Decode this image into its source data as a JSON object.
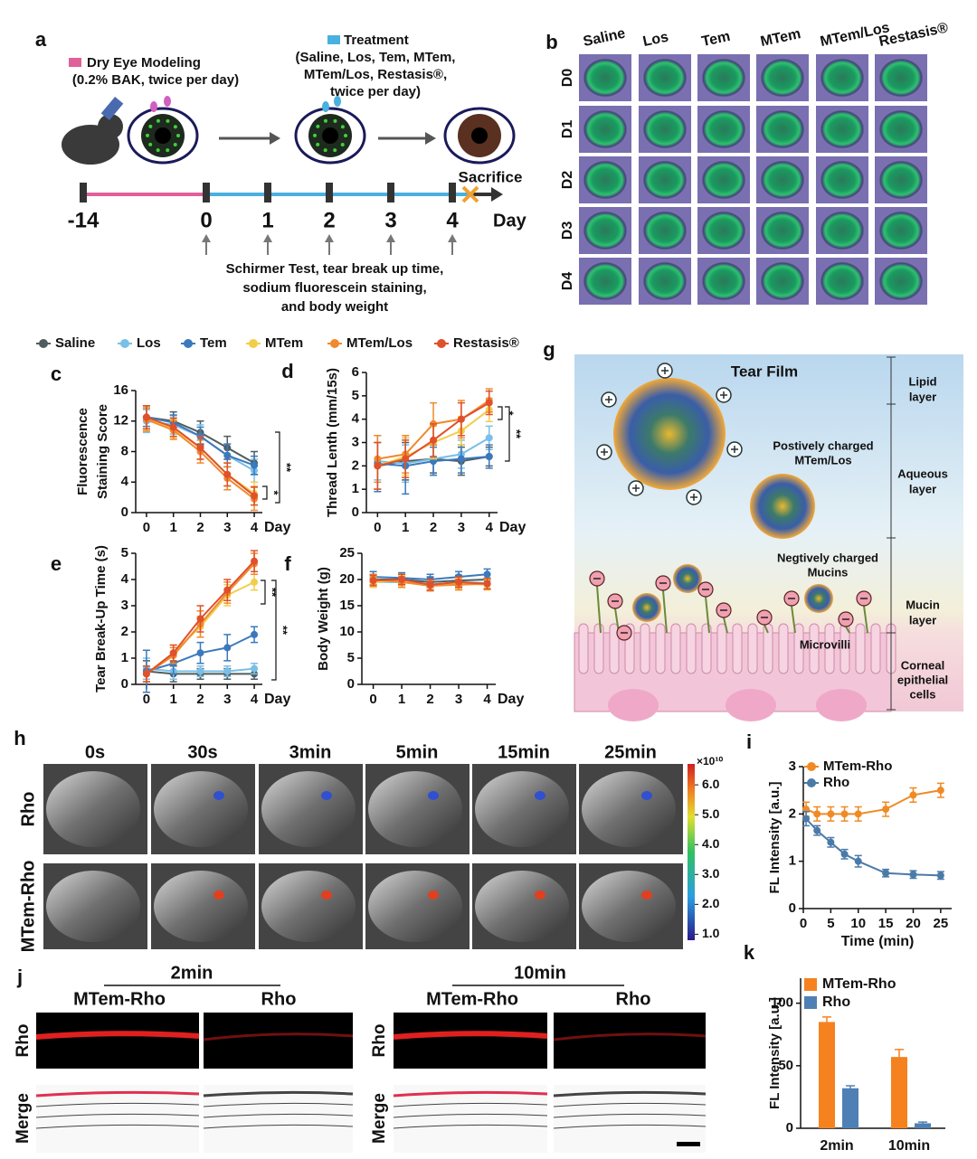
{
  "panel_labels": [
    "a",
    "b",
    "c",
    "d",
    "e",
    "f",
    "g",
    "h",
    "i",
    "j",
    "k"
  ],
  "schematic": {
    "modeling": "Dry Eye Modeling",
    "modeling_note": "(0.2% BAK, twice per day)",
    "treatment": "Treatment",
    "treatment_note": [
      "(Saline, Los, Tem, MTem,",
      "MTem/Los, Restasis®,",
      "twice per day)"
    ],
    "timeline": [
      "-14",
      "0",
      "1",
      "2",
      "3",
      "4"
    ],
    "timeline_unit": "Day",
    "sacrifice": "Sacrifice",
    "tests": [
      "Schirmer Test, tear break up time,",
      "sodium fluorescein staining,",
      "and body weight"
    ]
  },
  "staining": {
    "columns": [
      "Saline",
      "Los",
      "Tem",
      "MTem",
      "MTem/Los",
      "Restasis®"
    ],
    "rows": [
      "D0",
      "D1",
      "D2",
      "D3",
      "D4"
    ]
  },
  "tear_film": {
    "title": "Tear Film",
    "layers": [
      [
        "Lipid",
        "layer"
      ],
      [
        "Aqueous",
        "layer"
      ],
      [
        "Mucin",
        "layer"
      ],
      [
        "Corneal",
        "epithelial",
        "cells"
      ]
    ],
    "particle": [
      "Postively charged",
      "MTem/Los"
    ],
    "mucins": [
      "Negtively charged",
      "Mucins"
    ],
    "microvilli": "Microvilli"
  },
  "imaging": {
    "times": [
      "0s",
      "30s",
      "3min",
      "5min",
      "15min",
      "25min"
    ],
    "rows": [
      "Rho",
      "MTem-Rho"
    ],
    "colorbar": {
      "unit": "×10¹⁰",
      "lim": [
        0.8,
        6.7
      ],
      "ticks": [
        {
          "value": 1,
          "label": "1.0"
        },
        {
          "value": 2,
          "label": "2.0"
        },
        {
          "value": 3,
          "label": "3.0"
        },
        {
          "value": 4,
          "label": "4.0"
        },
        {
          "value": 5,
          "label": "5.0"
        },
        {
          "value": 6,
          "label": "6.0"
        }
      ]
    }
  },
  "sections": {
    "times": [
      "2min",
      "10min"
    ],
    "groups": [
      "MTem-Rho",
      "Rho",
      "MTem-Rho",
      "Rho"
    ],
    "rows": [
      "Rho",
      "Merge"
    ]
  },
  "chart_data": [
    {
      "type": "line",
      "ylabel": [
        "Fluorescence",
        "Staining Score"
      ],
      "xlabel": "Day",
      "x": [
        0,
        1,
        2,
        3,
        4
      ],
      "xlim": [
        -0.4,
        4.3
      ],
      "xticks": [
        0,
        1,
        2,
        3,
        4
      ],
      "ylim": [
        0,
        16
      ],
      "yticks": [
        0,
        4,
        8,
        12,
        16
      ],
      "annotations": [
        "*",
        "**"
      ],
      "series": [
        {
          "name": "Saline",
          "color": "#4f5d5e",
          "values": [
            12.5,
            12,
            10.5,
            8.5,
            6.5
          ],
          "errors": [
            1.5,
            1.2,
            1.5,
            1.5,
            1.5
          ]
        },
        {
          "name": "Los",
          "color": "#79bfe8",
          "values": [
            12,
            11.5,
            10,
            7.5,
            5.5
          ],
          "errors": [
            1.5,
            1.2,
            1.5,
            1.5,
            1.5
          ]
        },
        {
          "name": "Tem",
          "color": "#3b79bd",
          "values": [
            12.5,
            11.8,
            10,
            7.5,
            6.2
          ],
          "errors": [
            1.2,
            1,
            1.2,
            1.5,
            1.2
          ]
        },
        {
          "name": "MTem",
          "color": "#f2cd4a",
          "values": [
            12.3,
            11,
            8.5,
            5,
            2.5
          ],
          "errors": [
            1.5,
            1.2,
            1.5,
            1.5,
            1.5
          ]
        },
        {
          "name": "MTem/Los",
          "color": "#ef8a2e",
          "values": [
            12.2,
            10.8,
            8,
            4.5,
            1.8
          ],
          "errors": [
            1.5,
            1.2,
            1.5,
            1.5,
            1.5
          ]
        },
        {
          "name": "Restasis®",
          "color": "#e0502a",
          "values": [
            12.5,
            11.2,
            8.5,
            5,
            2.2
          ],
          "errors": [
            1.5,
            1.2,
            1.5,
            1.5,
            1.2
          ]
        }
      ]
    },
    {
      "type": "line",
      "ylabel": [
        "Thread Lenth (mm/15s)"
      ],
      "xlabel": "Day",
      "x": [
        0,
        1,
        2,
        3,
        4
      ],
      "xlim": [
        -0.4,
        4.3
      ],
      "xticks": [
        0,
        1,
        2,
        3,
        4
      ],
      "ylim": [
        0,
        6
      ],
      "yticks": [
        0,
        1,
        2,
        3,
        4,
        5,
        6
      ],
      "annotations": [
        "*",
        "**"
      ],
      "series": [
        {
          "color": "#4f5d5e",
          "values": [
            2,
            2.2,
            2.3,
            2.2,
            2.4
          ],
          "errors": [
            1,
            0.8,
            0.6,
            0.6,
            0.4
          ]
        },
        {
          "color": "#79bfe8",
          "values": [
            2.2,
            2.1,
            2.3,
            2.5,
            3.2
          ],
          "errors": [
            0.8,
            0.8,
            0.7,
            0.6,
            0.5
          ]
        },
        {
          "color": "#3b79bd",
          "values": [
            2.1,
            2,
            2.2,
            2.3,
            2.4
          ],
          "errors": [
            1.2,
            1.2,
            0.6,
            0.6,
            0.5
          ]
        },
        {
          "color": "#f2cd4a",
          "values": [
            2,
            2.4,
            3,
            3.5,
            4.4
          ],
          "errors": [
            1,
            0.8,
            0.7,
            0.6,
            0.5
          ]
        },
        {
          "color": "#ef8a2e",
          "values": [
            2.3,
            2.5,
            3.8,
            4,
            4.8
          ],
          "errors": [
            1,
            0.8,
            0.9,
            0.8,
            0.5
          ]
        },
        {
          "color": "#e0502a",
          "values": [
            2,
            2.3,
            3.1,
            4,
            4.7
          ],
          "errors": [
            1,
            0.8,
            0.7,
            0.7,
            0.5
          ]
        }
      ]
    },
    {
      "type": "line",
      "ylabel": [
        "Tear Break-Up Time (s)"
      ],
      "xlabel": "Day",
      "x": [
        0,
        1,
        2,
        3,
        4
      ],
      "xlim": [
        -0.4,
        4.3
      ],
      "xticks": [
        0,
        1,
        2,
        3,
        4
      ],
      "ylim": [
        0,
        5
      ],
      "yticks": [
        0,
        1,
        2,
        3,
        4,
        5
      ],
      "annotations": [
        "**",
        "**"
      ],
      "series": [
        {
          "color": "#4f5d5e",
          "values": [
            0.5,
            0.4,
            0.4,
            0.4,
            0.4
          ],
          "errors": [
            0.4,
            0.3,
            0.2,
            0.2,
            0.2
          ]
        },
        {
          "color": "#79bfe8",
          "values": [
            0.6,
            0.5,
            0.5,
            0.5,
            0.6
          ],
          "errors": [
            0.4,
            0.3,
            0.2,
            0.2,
            0.2
          ]
        },
        {
          "color": "#3b79bd",
          "values": [
            0.5,
            0.8,
            1.2,
            1.4,
            1.9
          ],
          "errors": [
            0.8,
            0.4,
            0.4,
            0.5,
            0.3
          ]
        },
        {
          "color": "#f2cd4a",
          "values": [
            0.4,
            1.2,
            2.2,
            3.4,
            3.9
          ],
          "errors": [
            0.3,
            0.3,
            0.4,
            0.4,
            0.3
          ]
        },
        {
          "color": "#ef8a2e",
          "values": [
            0.4,
            1.1,
            2.3,
            3.5,
            4.6
          ],
          "errors": [
            0.3,
            0.3,
            0.5,
            0.4,
            0.4
          ]
        },
        {
          "color": "#e0502a",
          "values": [
            0.4,
            1.2,
            2.5,
            3.6,
            4.7
          ],
          "errors": [
            0.3,
            0.3,
            0.5,
            0.4,
            0.4
          ]
        }
      ]
    },
    {
      "type": "line",
      "ylabel": [
        "Body Weight (g)"
      ],
      "xlabel": "Day",
      "x": [
        0,
        1,
        2,
        3,
        4
      ],
      "xlim": [
        -0.4,
        4.3
      ],
      "xticks": [
        0,
        1,
        2,
        3,
        4
      ],
      "ylim": [
        0,
        25
      ],
      "yticks": [
        0,
        5,
        10,
        15,
        20,
        25
      ],
      "annotations": [],
      "series": [
        {
          "color": "#4f5d5e",
          "values": [
            20,
            20,
            19.5,
            19.8,
            20
          ],
          "errors": [
            1,
            1,
            1,
            1,
            1
          ]
        },
        {
          "color": "#79bfe8",
          "values": [
            19.5,
            19.5,
            19,
            19.5,
            19.3
          ],
          "errors": [
            1,
            1,
            1,
            1,
            1
          ]
        },
        {
          "color": "#3b79bd",
          "values": [
            20.5,
            20.3,
            20,
            20.5,
            21
          ],
          "errors": [
            1,
            1,
            1,
            1,
            1
          ]
        },
        {
          "color": "#f2cd4a",
          "values": [
            19.5,
            19.8,
            18.8,
            19.2,
            19
          ],
          "errors": [
            1,
            1,
            1,
            1,
            1
          ]
        },
        {
          "color": "#ef8a2e",
          "values": [
            20,
            19.5,
            18.8,
            19,
            19.2
          ],
          "errors": [
            1,
            1,
            1,
            1,
            1
          ]
        },
        {
          "color": "#e0502a",
          "values": [
            19.8,
            20,
            19,
            19.5,
            19.2
          ],
          "errors": [
            1,
            1,
            1,
            1,
            1
          ]
        }
      ]
    },
    {
      "type": "line",
      "ylabel": [
        "FL Intensity [a.u.]"
      ],
      "xlabel": "Time (min)",
      "x": [
        0.5,
        2.5,
        5,
        7.5,
        10,
        15,
        20,
        25
      ],
      "xlim": [
        0,
        27
      ],
      "xticks": [
        0,
        5,
        10,
        15,
        20,
        25
      ],
      "ylim": [
        0,
        3
      ],
      "yticks": [
        0,
        1,
        2,
        3
      ],
      "annotations": [],
      "series": [
        {
          "name": "MTem-Rho",
          "color": "#f08a24",
          "values": [
            2.1,
            2,
            2,
            2,
            2,
            2.1,
            2.4,
            2.5
          ],
          "errors": [
            0.15,
            0.15,
            0.15,
            0.15,
            0.15,
            0.15,
            0.15,
            0.15
          ]
        },
        {
          "name": "Rho",
          "color": "#4a7aa8",
          "values": [
            1.9,
            1.65,
            1.4,
            1.15,
            1,
            0.75,
            0.72,
            0.7
          ],
          "errors": [
            0.15,
            0.1,
            0.1,
            0.1,
            0.12,
            0.08,
            0.08,
            0.08
          ]
        }
      ]
    },
    {
      "type": "bar",
      "ylabel": [
        "FL Intensity [a.u.]"
      ],
      "categories": [
        "2min",
        "10min"
      ],
      "ylim": [
        0,
        120
      ],
      "yticks": [
        0,
        50,
        100
      ],
      "series": [
        {
          "name": "MTem-Rho",
          "color": "#f5821f",
          "values": [
            85,
            57
          ],
          "errors": [
            4,
            6
          ]
        },
        {
          "name": "Rho",
          "color": "#4f80b5",
          "values": [
            32,
            4
          ],
          "errors": [
            2,
            1
          ]
        }
      ]
    }
  ]
}
